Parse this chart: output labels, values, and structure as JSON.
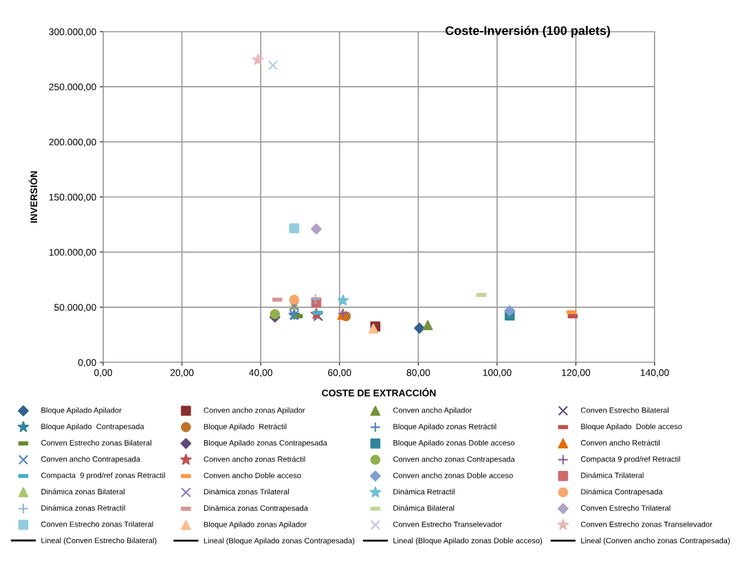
{
  "chart_data": {
    "type": "scatter",
    "title": "Coste-Inversión (100 palets)",
    "xlabel": "COSTE DE EXTRACCIÓN",
    "ylabel": "INVERSIÓN",
    "xlim": [
      0,
      140
    ],
    "xticks": [
      {
        "value": 0,
        "label": "0,00"
      },
      {
        "value": 20,
        "label": "20,00"
      },
      {
        "value": 40,
        "label": "40,00"
      },
      {
        "value": 60,
        "label": "60,00"
      },
      {
        "value": 80,
        "label": "80,00"
      },
      {
        "value": 100,
        "label": "100,00"
      },
      {
        "value": 120,
        "label": "120,00"
      },
      {
        "value": 140,
        "label": "140,00"
      }
    ],
    "ylim": [
      0,
      300000
    ],
    "yticks": [
      {
        "value": 0,
        "label": "0,00"
      },
      {
        "value": 50000,
        "label": "50.000,00"
      },
      {
        "value": 100000,
        "label": "100.000,00"
      },
      {
        "value": 150000,
        "label": "150.000,00"
      },
      {
        "value": 200000,
        "label": "200.000,00"
      },
      {
        "value": 250000,
        "label": "250.000,00"
      },
      {
        "value": 300000,
        "label": "300.000,00"
      }
    ],
    "grid": true,
    "legend": "bottom",
    "series": [
      {
        "name": "Bloque Apilado Apilador",
        "color": "#335f91",
        "marker": "diamond",
        "x": [
          80.3
        ],
        "values": [
          31000
        ]
      },
      {
        "name": "Conven ancho zonas Apilador",
        "color": "#8b2e2e",
        "marker": "square",
        "x": [
          69.1
        ],
        "values": [
          32500
        ]
      },
      {
        "name": "Conven ancho Apilador",
        "color": "#76923c",
        "marker": "triangle",
        "x": [
          82.4
        ],
        "values": [
          33700
        ]
      },
      {
        "name": "Conven Estrecho Bilateral",
        "color": "#5f497a",
        "marker": "cross",
        "x": [
          54.6
        ],
        "values": [
          41800
        ]
      },
      {
        "name": "Bloque Apilado  Contrapesada",
        "color": "#31859c",
        "marker": "star",
        "x": [
          48.5
        ],
        "values": [
          43000
        ]
      },
      {
        "name": "Bloque Apilado  Retráctil",
        "color": "#c0722b",
        "marker": "circle",
        "x": [
          61.6
        ],
        "values": [
          41800
        ]
      },
      {
        "name": "Bloque Apilado zonas Retráctil",
        "color": "#4f81bd",
        "marker": "plus",
        "x": [
          48.5
        ],
        "values": [
          43000
        ]
      },
      {
        "name": "Bloque Apilado  Doble acceso",
        "color": "#c0504d",
        "x": [
          119.2
        ],
        "values": [
          41800
        ]
      },
      {
        "name": "Conven Estrecho zonas Bilateral",
        "color": "#6a8a2c",
        "x": [
          49.4
        ],
        "values": [
          41800
        ]
      },
      {
        "name": "Bloque Apilado zonas Contrapesada",
        "color": "#604a7b",
        "marker": "diamond",
        "x": [
          43.6
        ],
        "values": [
          41000
        ]
      },
      {
        "name": "Bloque Apilado zonas Doble acceso",
        "color": "#31859c",
        "marker": "square",
        "x": [
          103.2
        ],
        "values": [
          42400
        ]
      },
      {
        "name": "Conven ancho Retráctil",
        "color": "#e46c0a",
        "marker": "triangle",
        "x": [
          60.7
        ],
        "values": [
          43000
        ]
      },
      {
        "name": "Conven ancho Contrapesada",
        "color": "#4f81bd",
        "marker": "cross",
        "x": [
          48.5
        ],
        "values": [
          43000
        ]
      },
      {
        "name": "Conven ancho zonas Retráctil",
        "color": "#c0504d",
        "marker": "star",
        "x": [
          54.1
        ],
        "values": [
          43700
        ]
      },
      {
        "name": "Conven ancho zonas Contrapesada",
        "color": "#8fb04a",
        "marker": "circle",
        "x": [
          43.6
        ],
        "values": [
          43700
        ]
      },
      {
        "name": "Compacta 9 prod/ref Retractil",
        "color": "#8064a2",
        "marker": "plus",
        "x": [
          60.9
        ],
        "values": [
          44300
        ]
      },
      {
        "name": "Compacta  9 prod/ref zonas Retractil",
        "color": "#4bacc6",
        "x": [
          54.5
        ],
        "values": [
          44900
        ]
      },
      {
        "name": "Conven ancho Doble acceso",
        "color": "#f79646",
        "x": [
          118.9
        ],
        "values": [
          45500
        ]
      },
      {
        "name": "Conven ancho zonas Doble acceso",
        "color": "#7f9fd3",
        "marker": "diamond",
        "x": [
          103.2
        ],
        "values": [
          46800
        ]
      },
      {
        "name": "Dinámica Trilateral",
        "color": "#cd6a6a",
        "marker": "square",
        "x": [
          54.1
        ],
        "values": [
          54300
        ]
      },
      {
        "name": "Dinámica zonas Bilateral",
        "color": "#a9c56b",
        "marker": "triangle",
        "x": [
          48.5
        ],
        "values": [
          52400
        ]
      },
      {
        "name": "Dinámica zonas Trilateral",
        "color": "#8c77ad",
        "marker": "cross",
        "x": [
          48.5
        ],
        "values": [
          51000
        ]
      },
      {
        "name": "Dinámica Retractil",
        "color": "#6fc0d6",
        "marker": "star",
        "x": [
          60.9
        ],
        "values": [
          56100
        ]
      },
      {
        "name": "Dinámica Contrapesada",
        "color": "#f9a86c",
        "marker": "circle",
        "x": [
          48.5
        ],
        "values": [
          56800
        ]
      },
      {
        "name": "Dinámica zonas Retractil",
        "color": "#95b3d7",
        "marker": "plus",
        "x": [
          53.9
        ],
        "values": [
          57400
        ]
      },
      {
        "name": "Dinámica zonas Contrapesada",
        "color": "#d99694",
        "x": [
          44.2
        ],
        "values": [
          56800
        ]
      },
      {
        "name": "Dinámica Bilateral",
        "color": "#c3d69b",
        "x": [
          96.0
        ],
        "values": [
          61100
        ]
      },
      {
        "name": "Conven Estrecho Trilateral",
        "color": "#b2a1c7",
        "marker": "diamond",
        "x": [
          54.1
        ],
        "values": [
          121000
        ]
      },
      {
        "name": "Conven Estrecho zonas Trilateral",
        "color": "#93cddd",
        "marker": "square",
        "x": [
          48.5
        ],
        "values": [
          121600
        ]
      },
      {
        "name": "Bloque Apilado zonas Apilador",
        "color": "#fabf8f",
        "marker": "triangle",
        "x": [
          68.6
        ],
        "values": [
          30600
        ]
      },
      {
        "name": "Conven Estrecho Transelevador",
        "color": "#b9c7e4",
        "marker": "cross",
        "x": [
          43.1
        ],
        "values": [
          269400
        ]
      },
      {
        "name": "Conven Estrecho zonas Transelevador",
        "color": "#e6b9b8",
        "marker": "star",
        "x": [
          39.3
        ],
        "values": [
          274400
        ]
      },
      {
        "name": "Lineal (Conven Estrecho Bilateral)",
        "type": "line",
        "color": "#000000",
        "marker": "none"
      },
      {
        "name": "Lineal (Bloque Apilado zonas Contrapesada)",
        "type": "line",
        "color": "#000000",
        "marker": "none"
      },
      {
        "name": "Lineal (Bloque Apilado zonas Doble acceso)",
        "type": "line",
        "color": "#000000",
        "marker": "none"
      },
      {
        "name": "Lineal (Conven ancho zonas Contrapesada)",
        "type": "line",
        "color": "#000000",
        "marker": "none"
      }
    ]
  }
}
